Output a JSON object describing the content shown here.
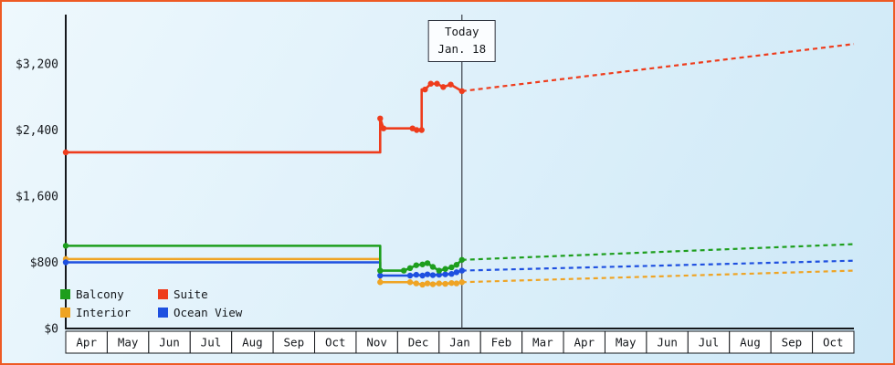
{
  "theme": {
    "frame_border": "#ee5a24",
    "plot_bg_light": "#eef8fd",
    "plot_bg_dark": "#cde8f7",
    "axis_color": "#15181c",
    "today_line_color": "#3a3f48",
    "month_cell_bg": "#ffffff"
  },
  "chart_data": {
    "type": "line",
    "title": "",
    "x_axis": {
      "months": [
        "Apr",
        "May",
        "Jun",
        "Jul",
        "Aug",
        "Sep",
        "Oct",
        "Nov",
        "Dec",
        "Jan",
        "Feb",
        "Mar",
        "Apr",
        "May",
        "Jun",
        "Jul",
        "Aug",
        "Sep",
        "Oct"
      ]
    },
    "y_axis": {
      "ticks": [
        {
          "label": "$0",
          "value": 0
        },
        {
          "label": "$800",
          "value": 800
        },
        {
          "label": "$1,600",
          "value": 1600
        },
        {
          "label": "$2,400",
          "value": 2400
        },
        {
          "label": "$3,200",
          "value": 3200
        }
      ],
      "ylim": [
        0,
        3800
      ],
      "grid": false
    },
    "today": {
      "label_line1": "Today",
      "label_line2": "Jan. 18",
      "month_index": 9.55
    },
    "series": [
      {
        "name": "Interior",
        "color": "#efa424",
        "style_history": "solid",
        "style_forecast": "dotted",
        "history": [
          [
            0,
            840,
            1
          ],
          [
            7.58,
            840,
            0
          ],
          [
            7.58,
            560,
            1
          ],
          [
            8.3,
            560,
            1
          ],
          [
            8.45,
            545,
            1
          ],
          [
            8.6,
            530,
            1
          ],
          [
            8.72,
            545,
            1
          ],
          [
            8.85,
            535,
            1
          ],
          [
            9.0,
            545,
            1
          ],
          [
            9.15,
            540,
            1
          ],
          [
            9.3,
            550,
            1
          ],
          [
            9.42,
            545,
            1
          ],
          [
            9.55,
            560,
            1
          ]
        ],
        "forecast": [
          [
            9.55,
            560
          ],
          [
            19,
            700
          ]
        ]
      },
      {
        "name": "Ocean View",
        "color": "#1e50e0",
        "style_history": "solid",
        "style_forecast": "dotted",
        "history": [
          [
            0,
            800,
            1
          ],
          [
            7.58,
            800,
            0
          ],
          [
            7.58,
            640,
            1
          ],
          [
            8.3,
            640,
            1
          ],
          [
            8.45,
            650,
            1
          ],
          [
            8.6,
            640,
            1
          ],
          [
            8.72,
            655,
            1
          ],
          [
            8.85,
            645,
            1
          ],
          [
            9.0,
            650,
            1
          ],
          [
            9.15,
            655,
            1
          ],
          [
            9.3,
            660,
            1
          ],
          [
            9.42,
            680,
            1
          ],
          [
            9.55,
            700,
            1
          ]
        ],
        "forecast": [
          [
            9.55,
            700
          ],
          [
            19,
            820
          ]
        ]
      },
      {
        "name": "Balcony",
        "color": "#1d9e1d",
        "style_history": "solid",
        "style_forecast": "dotted",
        "history": [
          [
            0,
            1000,
            1
          ],
          [
            7.58,
            1000,
            0
          ],
          [
            7.58,
            700,
            1
          ],
          [
            8.15,
            700,
            1
          ],
          [
            8.3,
            730,
            1
          ],
          [
            8.45,
            765,
            1
          ],
          [
            8.6,
            775,
            1
          ],
          [
            8.72,
            790,
            1
          ],
          [
            8.85,
            745,
            1
          ],
          [
            9.0,
            700,
            1
          ],
          [
            9.15,
            720,
            1
          ],
          [
            9.3,
            740,
            1
          ],
          [
            9.42,
            770,
            1
          ],
          [
            9.55,
            830,
            1
          ]
        ],
        "forecast": [
          [
            9.55,
            830
          ],
          [
            19,
            1020
          ]
        ]
      },
      {
        "name": "Suite",
        "color": "#ee3c1c",
        "style_history": "solid",
        "style_forecast": "dotted",
        "history": [
          [
            0,
            2130,
            1
          ],
          [
            7.58,
            2130,
            0
          ],
          [
            7.58,
            2540,
            1
          ],
          [
            7.66,
            2420,
            1
          ],
          [
            8.36,
            2420,
            1
          ],
          [
            8.46,
            2400,
            1
          ],
          [
            8.58,
            2400,
            1
          ],
          [
            8.58,
            2890,
            0
          ],
          [
            8.66,
            2890,
            1
          ],
          [
            8.8,
            2960,
            1
          ],
          [
            8.95,
            2960,
            1
          ],
          [
            9.1,
            2920,
            1
          ],
          [
            9.28,
            2950,
            1
          ],
          [
            9.55,
            2870,
            1
          ]
        ],
        "forecast": [
          [
            9.55,
            2870
          ],
          [
            19,
            3440
          ]
        ]
      }
    ],
    "legend": [
      {
        "label": "Balcony",
        "color": "#1d9e1d"
      },
      {
        "label": "Suite",
        "color": "#ee3c1c"
      },
      {
        "label": "Interior",
        "color": "#efa424"
      },
      {
        "label": "Ocean View",
        "color": "#1e50e0"
      }
    ],
    "legend_position": "bottom-left"
  }
}
